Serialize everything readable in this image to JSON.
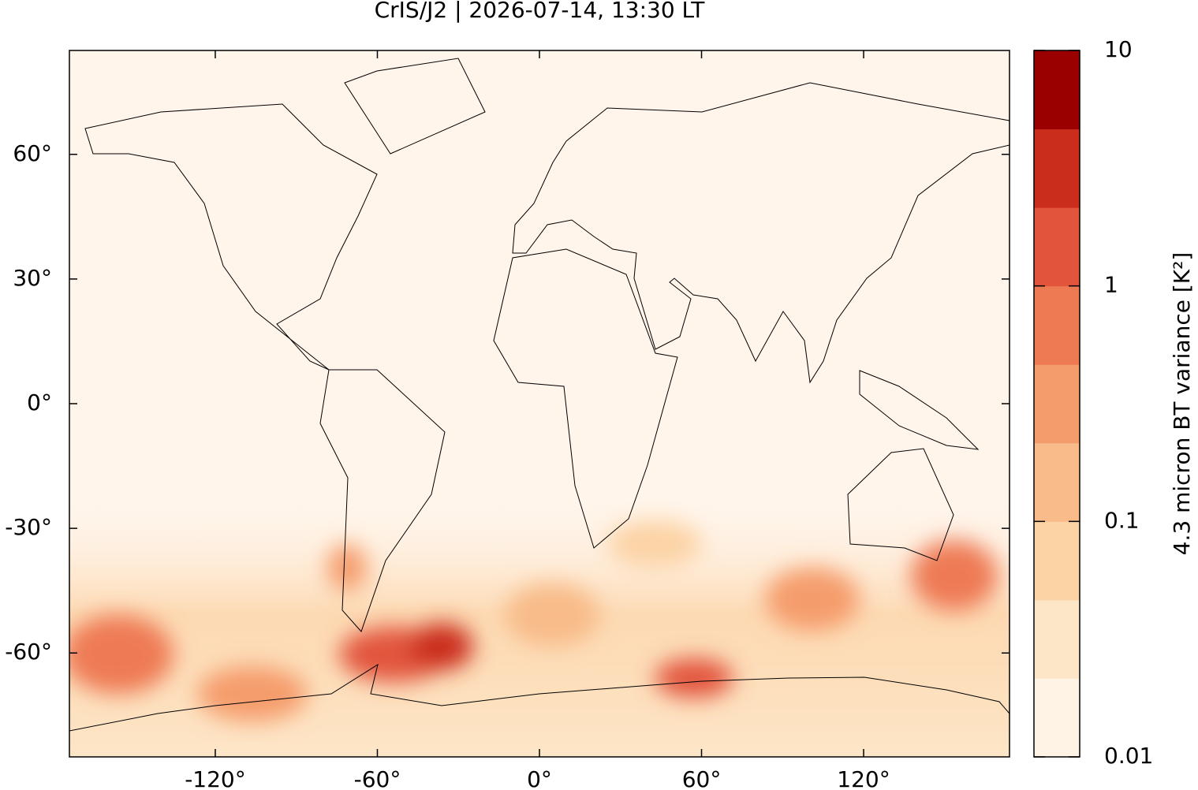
{
  "chart_data": {
    "type": "map",
    "title": "CrIS/J2 | 2026-07-14, 13:30 LT",
    "xlim": [
      -174,
      174
    ],
    "ylim": [
      -85,
      85
    ],
    "xticks": [
      {
        "value": -120,
        "label": "-120°"
      },
      {
        "value": -60,
        "label": "-60°"
      },
      {
        "value": 0,
        "label": "0°"
      },
      {
        "value": 60,
        "label": "60°"
      },
      {
        "value": 120,
        "label": "120°"
      }
    ],
    "yticks": [
      {
        "value": -60,
        "label": "-60°"
      },
      {
        "value": -30,
        "label": "-30°"
      },
      {
        "value": 0,
        "label": "0°"
      },
      {
        "value": 30,
        "label": "30°"
      },
      {
        "value": 60,
        "label": "60°"
      }
    ],
    "colorbar": {
      "label": "4.3 micron BT variance [K²]",
      "log": true,
      "zlim": [
        0.01,
        10
      ],
      "ticks": [
        0.01,
        0.1,
        1,
        10
      ],
      "colors": [
        "#fff3e6",
        "#fde6c8",
        "#fcd3a5",
        "#f8bb89",
        "#f59c6c",
        "#ee7a54",
        "#e2543c",
        "#cb2d1c",
        "#9b0000"
      ]
    }
  }
}
